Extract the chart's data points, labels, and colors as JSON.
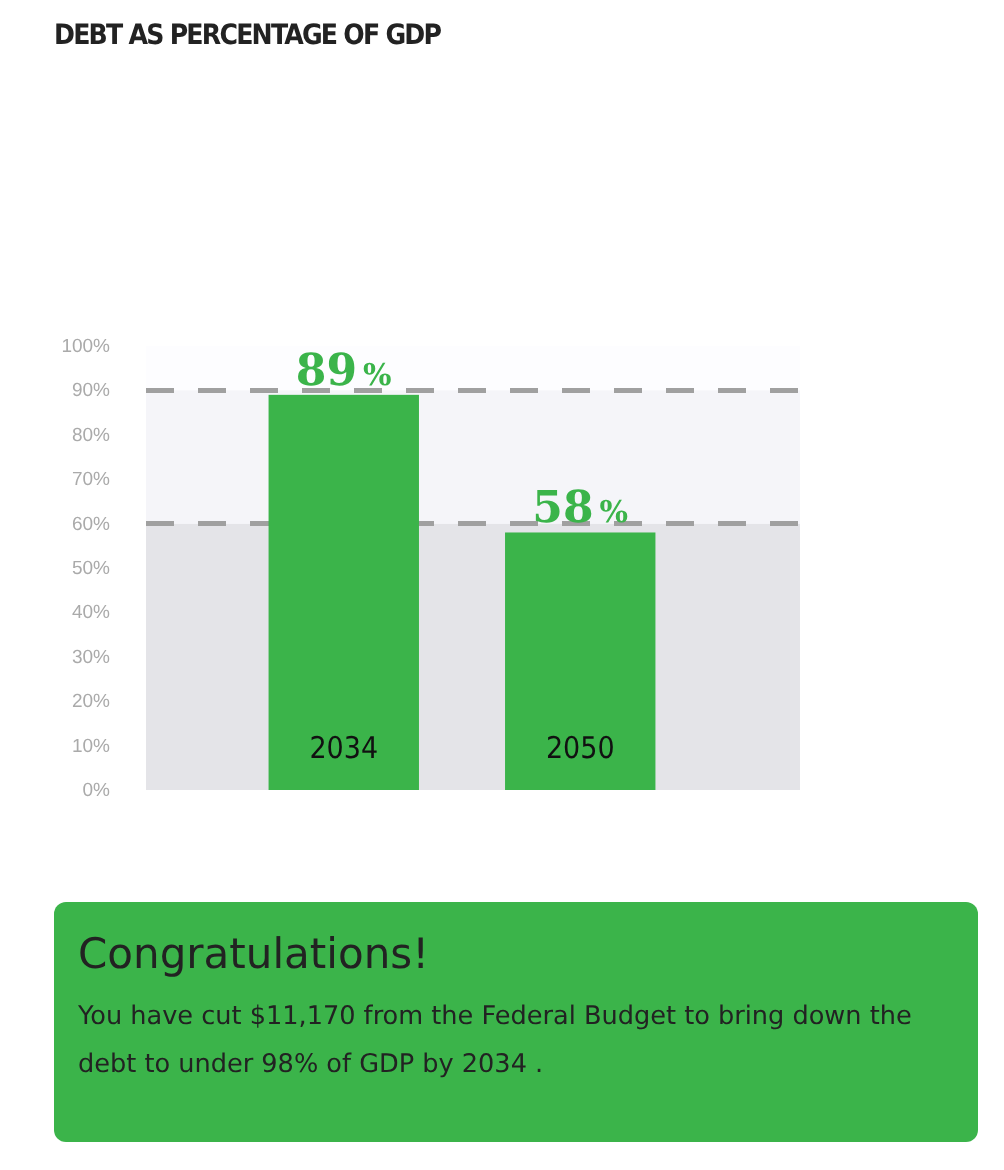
{
  "chart_data": {
    "type": "bar",
    "title": "DEBT AS PERCENTAGE OF GDP",
    "categories": [
      "2034",
      "2050"
    ],
    "values": [
      89,
      58
    ],
    "color": "#3bb44a",
    "value_labels": [
      "89%",
      "58%"
    ],
    "ylim": [
      0,
      100
    ],
    "yticks": [
      {
        "value": 0,
        "label": "0%"
      },
      {
        "value": 10,
        "label": "10%"
      },
      {
        "value": 20,
        "label": "20%"
      },
      {
        "value": 30,
        "label": "30%"
      },
      {
        "value": 40,
        "label": "40%"
      },
      {
        "value": 50,
        "label": "50%"
      },
      {
        "value": 60,
        "label": "60%"
      },
      {
        "value": 70,
        "label": "70%"
      },
      {
        "value": 80,
        "label": "80%"
      },
      {
        "value": 90,
        "label": "90%"
      },
      {
        "value": 100,
        "label": "100%"
      }
    ],
    "bands": [
      {
        "axis": "y",
        "from": 0,
        "to": 60,
        "color": "#e4e4e8"
      },
      {
        "axis": "y",
        "from": 60,
        "to": 90,
        "color": "#f5f5f9"
      }
    ],
    "ref_lines": [
      {
        "axis": "y",
        "value": 60,
        "color": "#a0a0a0",
        "line_style": "dashed"
      },
      {
        "axis": "y",
        "value": 90,
        "color": "#a0a0a0",
        "line_style": "dashed"
      }
    ],
    "grid": false,
    "annotations": [
      "Congratulations!",
      "You have cut $11,170 from the Federal Budget to bring down the debt to under 98% of GDP by 2034 ."
    ]
  }
}
